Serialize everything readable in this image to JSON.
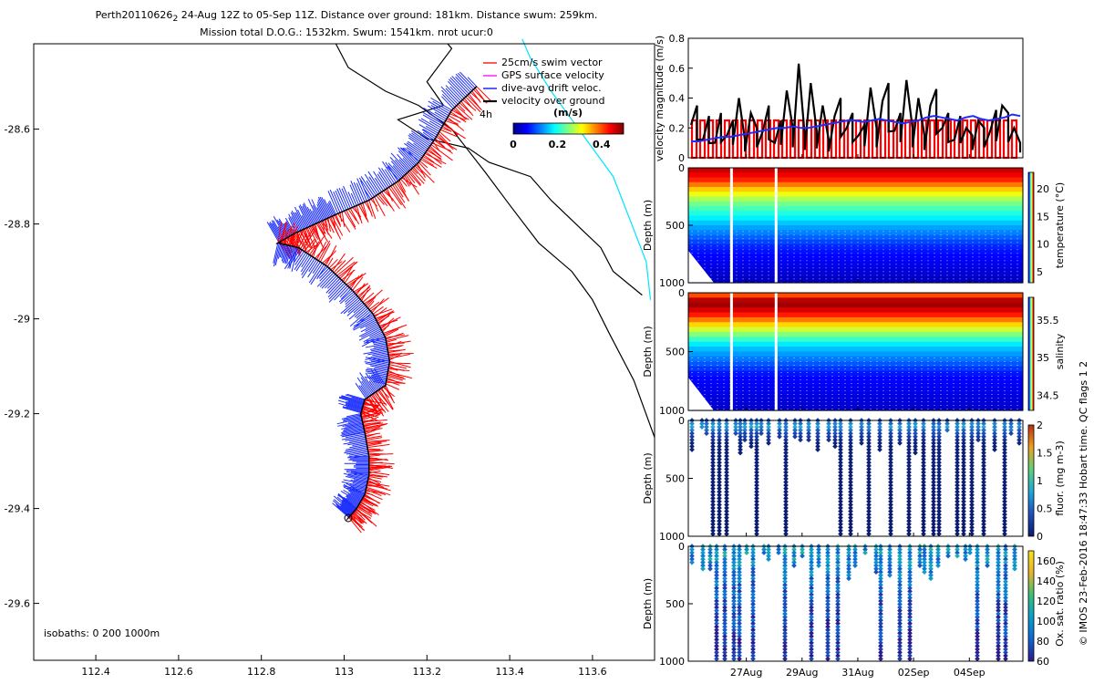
{
  "header": {
    "line1_prefix": "Perth20110626",
    "line1_subscript": "2",
    "line1_rest": " 24-Aug 12Z to 05-Sep 11Z. Distance over ground: 181km. Distance swum: 259km.",
    "line2": "Mission total D.O.G.: 1532km. Swum: 1541km. nrot ucur:0"
  },
  "chart_data": [
    {
      "type": "map",
      "name": "glider track",
      "xlim": [
        112.25,
        113.75
      ],
      "ylim": [
        -29.72,
        -28.42
      ],
      "xticks": [
        112.4,
        112.6,
        112.8,
        113,
        113.2,
        113.4,
        113.6
      ],
      "xticklabels": [
        "112.4",
        "112.6",
        "112.8",
        "113",
        "113.2",
        "113.4",
        "113.6"
      ],
      "yticks": [
        -28.6,
        -28.8,
        -29,
        -29.2,
        -29.4,
        -29.6
      ],
      "yticklabels": [
        "-28.6",
        "-28.8",
        "-29",
        "-29.2",
        "-29.4",
        "-29.6"
      ],
      "legend": [
        "25cm/s swim vector",
        "GPS surface velocity",
        "dive-avg drift veloc.",
        "velocity over ground"
      ],
      "legend_note": "4h",
      "colorbar": {
        "label": "(m/s)",
        "range": [
          0,
          0.5
        ],
        "ticks": [
          0,
          0.2,
          0.4
        ],
        "ticklabels": [
          "0",
          "0.2",
          "0.4"
        ]
      },
      "isobaths_label": "isobaths: 0   200   1000m",
      "track_lon": [
        113.32,
        113.26,
        113.22,
        113.18,
        113.13,
        113.06,
        112.98,
        112.93,
        112.88,
        112.84,
        112.89,
        112.96,
        113.02,
        113.07,
        113.1,
        113.11,
        113.1,
        113.05,
        113.04,
        113.05,
        113.06,
        113.06,
        113.05,
        113.03,
        113.01
      ],
      "track_lat": [
        -28.51,
        -28.56,
        -28.62,
        -28.67,
        -28.71,
        -28.75,
        -28.78,
        -28.8,
        -28.82,
        -28.84,
        -28.85,
        -28.89,
        -28.94,
        -28.99,
        -29.04,
        -29.09,
        -29.14,
        -29.17,
        -29.2,
        -29.24,
        -29.29,
        -29.33,
        -29.37,
        -29.4,
        -29.42
      ],
      "isobath_0_lon": [
        113.25,
        113.26,
        113.2,
        113.24,
        113.13,
        113.2,
        113.3,
        113.35,
        113.45,
        113.5,
        113.56,
        113.62,
        113.65,
        113.72
      ],
      "isobath_0_lat": [
        -28.42,
        -28.43,
        -28.5,
        -28.55,
        -28.58,
        -28.62,
        -28.64,
        -28.67,
        -28.7,
        -28.75,
        -28.8,
        -28.85,
        -28.9,
        -28.95
      ],
      "isobath_200_lon": [
        112.98,
        113.01,
        113.1,
        113.18,
        113.26,
        113.34,
        113.4,
        113.47,
        113.55,
        113.6,
        113.64,
        113.7,
        113.75
      ],
      "isobath_200_lat": [
        -28.42,
        -28.47,
        -28.52,
        -28.55,
        -28.6,
        -28.69,
        -28.76,
        -28.84,
        -28.9,
        -28.96,
        -29.03,
        -29.13,
        -29.25
      ],
      "isobath_1000_lon": [
        113.43,
        113.45,
        113.5,
        113.55,
        113.6,
        113.65,
        113.69,
        113.73,
        113.74
      ],
      "isobath_1000_lat": [
        -28.41,
        -28.45,
        -28.52,
        -28.58,
        -28.64,
        -28.7,
        -28.79,
        -28.88,
        -28.96
      ]
    },
    {
      "type": "line",
      "name": "velocity magnitude",
      "ylabel": "velocity magnitude (m/s)",
      "ylim": [
        0,
        0.8
      ],
      "yticks": [
        0,
        0.2,
        0.4,
        0.6,
        0.8
      ],
      "yticklabels": [
        "0",
        "0.2",
        "0.4",
        "0.6",
        "0.8"
      ],
      "xlim": [
        0,
        12
      ],
      "red_swim_level": 0.25,
      "series": [
        {
          "name": "velocity over ground",
          "color": "#000000",
          "values": [
            0.22,
            0.35,
            0.12,
            0.28,
            0.1,
            0.3,
            0.15,
            0.25,
            0.4,
            0.12,
            0.3,
            0.2,
            0.18,
            0.35,
            0.1,
            0.25,
            0.45,
            0.2,
            0.63,
            0.15,
            0.5,
            0.18,
            0.35,
            0.12,
            0.28,
            0.4,
            0.2,
            0.3,
            0.15,
            0.22,
            0.47,
            0.2,
            0.38,
            0.5,
            0.18,
            0.3,
            0.52,
            0.2,
            0.4,
            0.15,
            0.35,
            0.46,
            0.2,
            0.3,
            0.12,
            0.28,
            0.2,
            0.15,
            0.25,
            0.2,
            0.18,
            0.32,
            0.35,
            0.3,
            0.2,
            0.1
          ]
        },
        {
          "name": "dive-avg drift",
          "color": "#0000ff",
          "values": [
            0.11,
            0.11,
            0.12,
            0.13,
            0.14,
            0.14,
            0.15,
            0.16,
            0.17,
            0.18,
            0.19,
            0.2,
            0.2,
            0.21,
            0.2,
            0.2,
            0.21,
            0.22,
            0.23,
            0.24,
            0.25,
            0.25,
            0.24,
            0.25,
            0.26,
            0.25,
            0.24,
            0.23,
            0.24,
            0.25,
            0.27,
            0.28,
            0.27,
            0.26,
            0.25,
            0.27,
            0.28,
            0.26,
            0.25,
            0.26,
            0.27,
            0.29,
            0.28
          ]
        }
      ]
    },
    {
      "type": "heatmap",
      "name": "temperature",
      "ylabel": "Depth (m)",
      "ylim": [
        1000,
        0
      ],
      "yticks": [
        0,
        500,
        1000
      ],
      "colorbar_label": "temperature (°C)",
      "colorbar_ticks": [
        5,
        10,
        15,
        20
      ],
      "colorbar_range": [
        3,
        23
      ],
      "profile_depth": [
        0,
        100,
        200,
        300,
        500,
        700,
        1000
      ],
      "profile_value": [
        22,
        20,
        16,
        13,
        9,
        6,
        4
      ],
      "gaps": [
        1.5,
        3.1
      ]
    },
    {
      "type": "heatmap",
      "name": "salinity",
      "ylabel": "Depth (m)",
      "ylim": [
        1000,
        0
      ],
      "yticks": [
        0,
        500,
        1000
      ],
      "colorbar_label": "salinity",
      "colorbar_ticks": [
        34.5,
        35,
        35.5
      ],
      "colorbar_range": [
        34.3,
        35.8
      ],
      "profile_depth": [
        0,
        80,
        180,
        300,
        450,
        700,
        1000
      ],
      "profile_value": [
        35.4,
        35.8,
        35.6,
        35.2,
        34.8,
        34.5,
        34.4
      ],
      "gaps": [
        1.5,
        3.1
      ]
    },
    {
      "type": "heatmap",
      "name": "fluorescence",
      "ylabel": "Depth (m)",
      "ylim": [
        1000,
        0
      ],
      "yticks": [
        0,
        500,
        1000
      ],
      "colorbar_label": "fluor. (mg m-3)",
      "colorbar_ticks": [
        0,
        0.5,
        1,
        1.5,
        2
      ],
      "colorbar_range": [
        0,
        2
      ],
      "profile_depth": [
        0,
        50,
        100,
        200,
        1000
      ],
      "profile_value": [
        0.3,
        0.8,
        0.4,
        0.05,
        0
      ],
      "sparse": true
    },
    {
      "type": "heatmap",
      "name": "oxygen saturation",
      "ylabel": "Depth (m)",
      "ylim": [
        1000,
        0
      ],
      "yticks": [
        0,
        500,
        1000
      ],
      "colorbar_label": "Ox. sat. ratio (%)",
      "colorbar_ticks": [
        60,
        80,
        100,
        120,
        140,
        160
      ],
      "colorbar_range": [
        60,
        170
      ],
      "profile_depth": [
        0,
        100,
        300,
        600,
        1000
      ],
      "profile_value": [
        100,
        98,
        88,
        75,
        62
      ],
      "sparse": true
    },
    {
      "type": "axis",
      "name": "time axis",
      "xticks": [
        2.08,
        4.08,
        6.08,
        8.08,
        10.08
      ],
      "xticklabels": [
        "27Aug",
        "29Aug",
        "31Aug",
        "02Sep",
        "04Sep"
      ],
      "xlim": [
        0,
        12
      ]
    }
  ],
  "side_note": "© IMOS 23-Feb-2016 18:47:33 Hobart time. QC flags 1  2"
}
